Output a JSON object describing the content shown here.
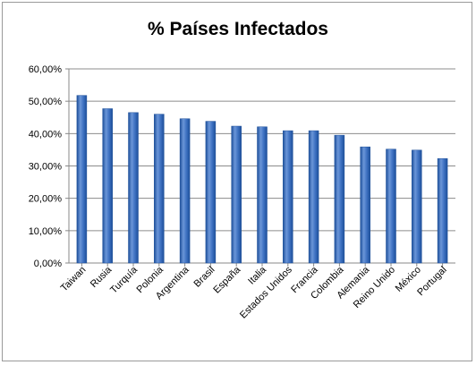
{
  "chart_data": {
    "type": "bar",
    "title": "% Países Infectados",
    "xlabel": "",
    "ylabel": "",
    "ylim": [
      0,
      60
    ],
    "yticks": [
      "0,00%",
      "10,00%",
      "20,00%",
      "30,00%",
      "40,00%",
      "50,00%",
      "60,00%"
    ],
    "grid": true,
    "legend": "none",
    "categories": [
      "Taiwan",
      "Rusia",
      "Turquía",
      "Polonia",
      "Argentina",
      "Brasil",
      "España",
      "Italia",
      "Estados Unidos",
      "Francia",
      "Colombia",
      "Alemania",
      "Reino Unido",
      "México",
      "Portugal"
    ],
    "values": [
      51.8,
      47.7,
      46.5,
      46.0,
      44.6,
      43.8,
      42.3,
      42.1,
      40.9,
      40.9,
      39.5,
      35.9,
      35.2,
      34.9,
      32.3
    ],
    "colors": {
      "bar": "#3f72c2",
      "bar_dark": "#1d4f9a",
      "bar_light": "#6b96d8",
      "grid": "#8c8c8c"
    }
  }
}
